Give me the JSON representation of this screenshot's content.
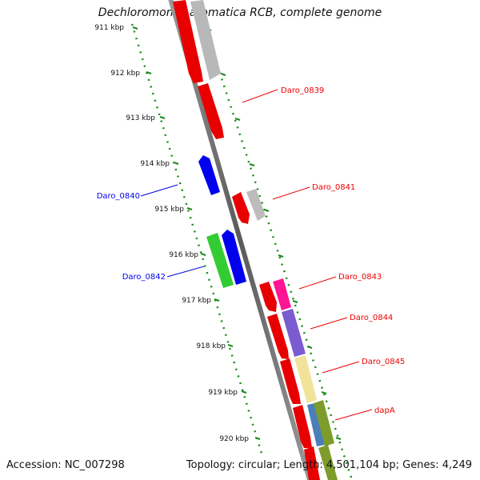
{
  "title": "Dechloromonas aromatica RCB, complete genome",
  "ticks": [
    "911 kbp",
    "912 kbp",
    "913 kbp",
    "914 kbp",
    "915 kbp",
    "916 kbp",
    "917 kbp",
    "918 kbp",
    "919 kbp",
    "920 kbp"
  ],
  "genes_left": [
    {
      "label": "Daro_0840",
      "color": "#0000ee"
    },
    {
      "label": "Daro_0842",
      "color": "#0000ee"
    }
  ],
  "genes_right": [
    {
      "label": "Daro_0839",
      "color": "#ee0000"
    },
    {
      "label": "Daro_0841",
      "color": "#ee0000"
    },
    {
      "label": "Daro_0843",
      "color": "#ee0000"
    },
    {
      "label": "Daro_0844",
      "color": "#ee0000"
    },
    {
      "label": "Daro_0845",
      "color": "#ee0000"
    },
    {
      "label": "dapA",
      "color": "#ee0000"
    }
  ],
  "footer": {
    "accession": "Accession: NC_007298",
    "summary": "Topology: circular; Length: 4,501,104 bp; Genes: 4,249"
  }
}
